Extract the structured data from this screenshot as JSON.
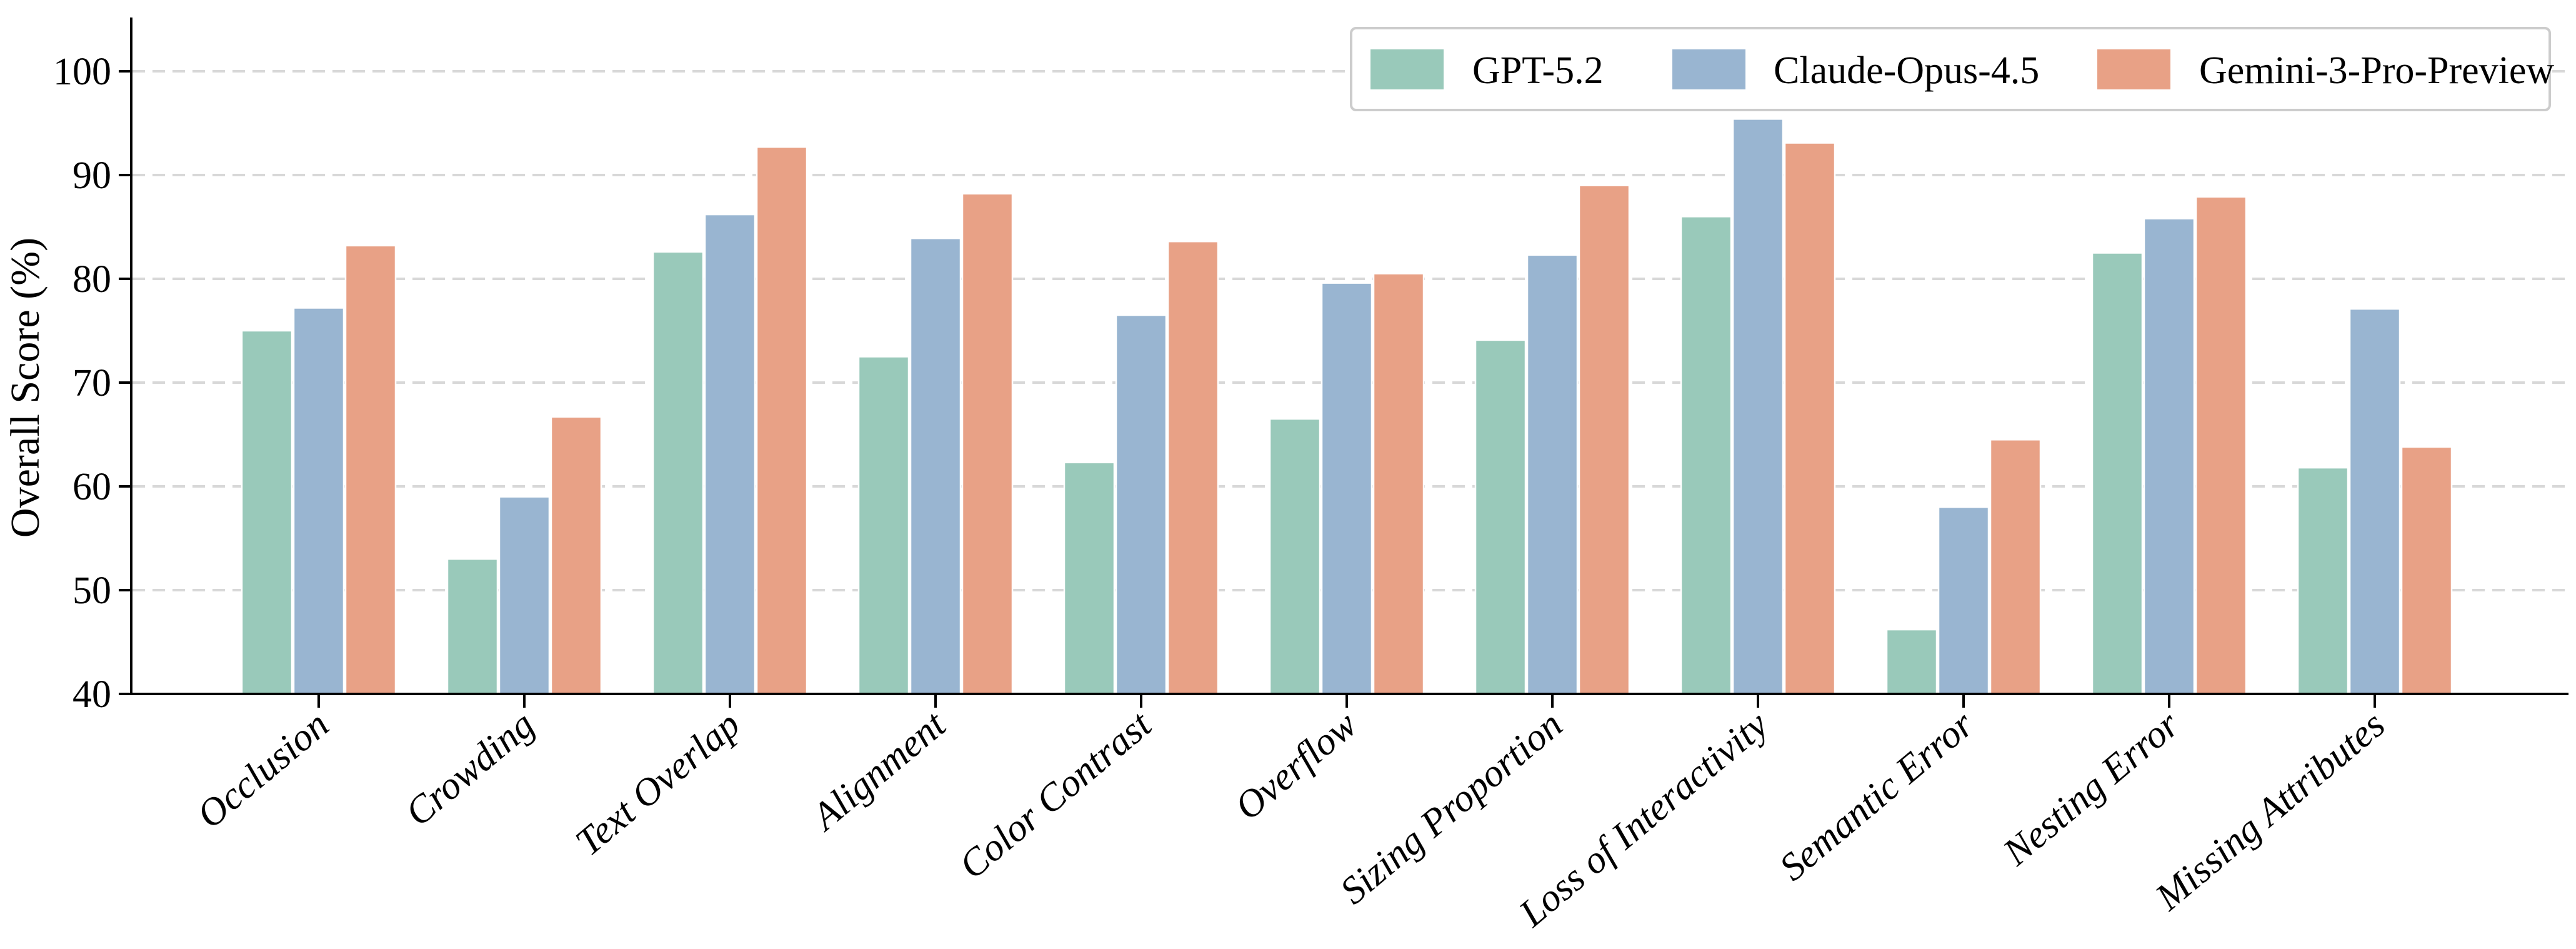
{
  "chart_data": {
    "type": "bar",
    "title": "",
    "xlabel": "",
    "ylabel": "Overall Score (%)",
    "ylim": [
      40,
      100
    ],
    "yticks": [
      40,
      50,
      60,
      70,
      80,
      90,
      100
    ],
    "grid": "horizontal dashed, values 50-100, drawn behind bars",
    "legend_position": "top-right inside plot",
    "categories": [
      "Occlusion",
      "Crowding",
      "Text Overlap",
      "Alignment",
      "Color Contrast",
      "Overflow",
      "Sizing Proportion",
      "Loss of Interactivity",
      "Semantic Error",
      "Nesting Error",
      "Missing Attributes"
    ],
    "series": [
      {
        "name": "GPT-5.2",
        "color": "#99c9ba",
        "values": [
          75.0,
          53.0,
          82.6,
          72.5,
          62.3,
          66.5,
          74.1,
          86.0,
          46.2,
          82.5,
          61.8
        ]
      },
      {
        "name": "Claude-Opus-4.5",
        "color": "#99b5d1",
        "values": [
          77.2,
          59.0,
          86.2,
          83.9,
          76.5,
          79.6,
          82.3,
          95.4,
          58.0,
          85.8,
          77.1
        ]
      },
      {
        "name": "Gemini-3-Pro-Preview",
        "color": "#e8a186",
        "values": [
          83.2,
          66.7,
          92.7,
          88.2,
          83.6,
          80.5,
          89.0,
          93.1,
          64.5,
          87.9,
          63.8
        ]
      }
    ]
  },
  "colors": {
    "background": "#ffffff",
    "gridline": "#d8d8d8",
    "spine": "#000000",
    "tick": "#000000",
    "text": "#000000",
    "bar_edge": "#ffffff",
    "legend_border": "#cccccc",
    "legend_background": "#ffffff"
  }
}
